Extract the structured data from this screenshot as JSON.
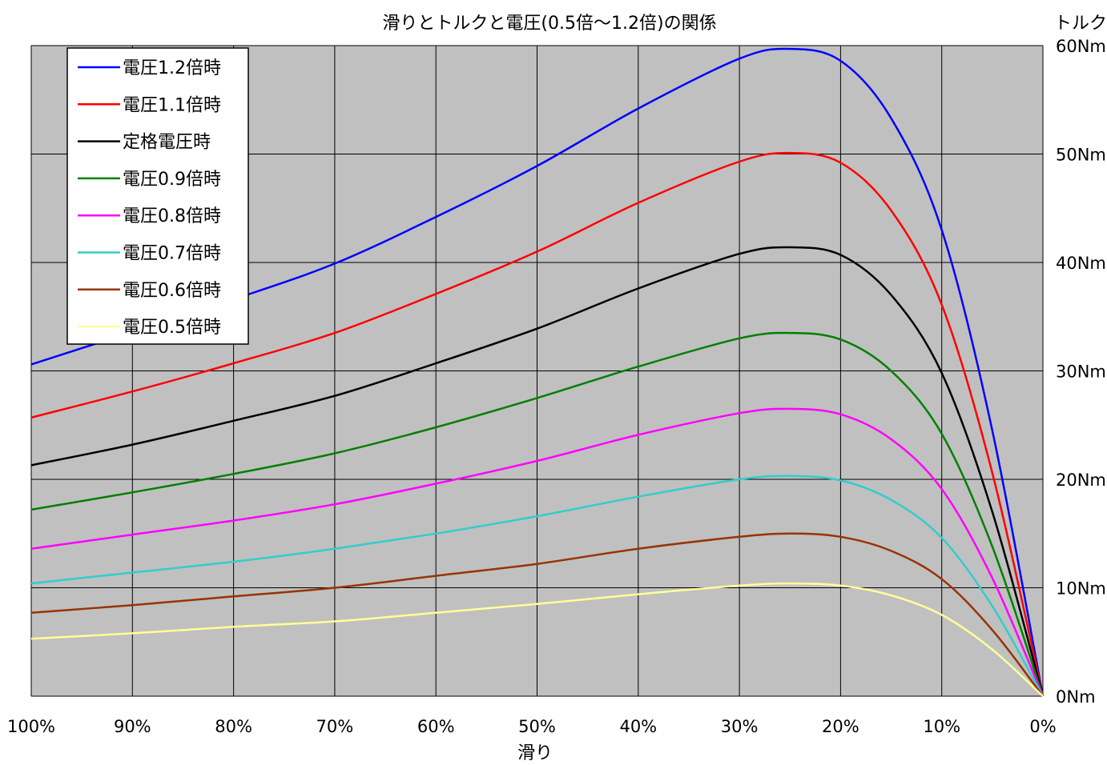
{
  "chart_data": {
    "type": "line",
    "title": "滑りとトルクと電圧(0.5倍～1.2倍)の関係",
    "xlabel": "滑り",
    "ylabel": "トルク",
    "x_tick_labels": [
      "100%",
      "90%",
      "80%",
      "70%",
      "60%",
      "50%",
      "40%",
      "30%",
      "20%",
      "10%",
      "0%"
    ],
    "y_tick_labels": [
      "0Nm",
      "10Nm",
      "20Nm",
      "30Nm",
      "40Nm",
      "50Nm",
      "60Nm"
    ],
    "x_ticks": [
      100,
      90,
      80,
      70,
      60,
      50,
      40,
      30,
      20,
      10,
      0
    ],
    "y_ticks": [
      0,
      10,
      20,
      30,
      40,
      50,
      60
    ],
    "xlim": [
      100,
      0
    ],
    "ylim": [
      0,
      60
    ],
    "grid": true,
    "legend_position": "top-left",
    "colors": {
      "plot_bg": "#c0c0c0",
      "grid": "#000000"
    },
    "x": [
      100,
      90,
      80,
      70,
      60,
      50,
      40,
      30,
      25,
      20,
      15,
      10,
      5,
      0
    ],
    "series": [
      {
        "name": "電圧1.2倍時",
        "color": "#0000ff",
        "values": [
          30.6,
          33.6,
          36.6,
          39.9,
          44.2,
          48.9,
          54.2,
          58.8,
          59.7,
          58.6,
          53.3,
          43.0,
          24.5,
          0
        ]
      },
      {
        "name": "電圧1.1倍時",
        "color": "#ff0000",
        "values": [
          25.7,
          28.1,
          30.7,
          33.5,
          37.1,
          41.0,
          45.5,
          49.3,
          50.1,
          49.2,
          44.8,
          36.1,
          20.6,
          0
        ]
      },
      {
        "name": "定格電圧時",
        "color": "#000000",
        "values": [
          21.3,
          23.2,
          25.4,
          27.7,
          30.7,
          33.9,
          37.6,
          40.8,
          41.4,
          40.7,
          37.0,
          29.8,
          17.0,
          0
        ]
      },
      {
        "name": "電圧0.9倍時",
        "color": "#008000",
        "values": [
          17.2,
          18.8,
          20.5,
          22.4,
          24.8,
          27.5,
          30.4,
          33.0,
          33.5,
          32.9,
          30.0,
          24.2,
          13.8,
          0
        ]
      },
      {
        "name": "電圧0.8倍時",
        "color": "#ff00ff",
        "values": [
          13.6,
          14.9,
          16.2,
          17.7,
          19.6,
          21.7,
          24.1,
          26.1,
          26.5,
          26.0,
          23.7,
          19.1,
          10.9,
          0
        ]
      },
      {
        "name": "電圧0.7倍時",
        "color": "#33cccc",
        "values": [
          10.4,
          11.4,
          12.4,
          13.6,
          15.0,
          16.6,
          18.4,
          20.0,
          20.3,
          19.9,
          18.1,
          14.6,
          8.3,
          0
        ]
      },
      {
        "name": "電圧0.6倍時",
        "color": "#993300",
        "values": [
          7.7,
          8.4,
          9.2,
          10.0,
          11.1,
          12.2,
          13.6,
          14.7,
          15.0,
          14.7,
          13.4,
          10.8,
          6.1,
          0
        ]
      },
      {
        "name": "電圧0.5倍時",
        "color": "#ffff99",
        "values": [
          5.3,
          5.8,
          6.4,
          6.9,
          7.7,
          8.5,
          9.4,
          10.2,
          10.4,
          10.2,
          9.3,
          7.5,
          4.3,
          0
        ]
      }
    ]
  }
}
